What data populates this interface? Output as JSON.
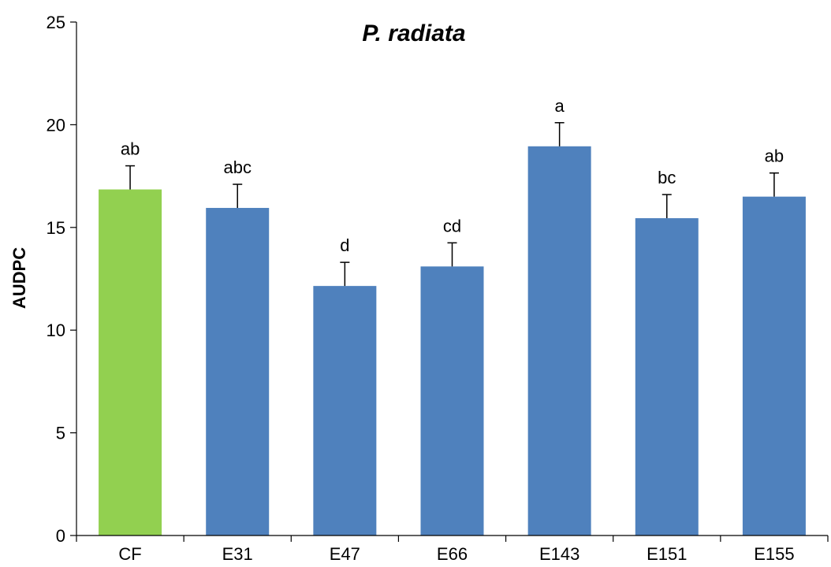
{
  "chart_data": {
    "type": "bar",
    "title": "P. radiata",
    "xlabel": "",
    "ylabel": "AUDPC",
    "ylim": [
      0,
      25
    ],
    "yticks": [
      0,
      5,
      10,
      15,
      20,
      25
    ],
    "grid": false,
    "categories": [
      "CF",
      "E31",
      "E47",
      "E66",
      "E143",
      "E151",
      "E155"
    ],
    "values": [
      16.85,
      15.95,
      12.15,
      13.1,
      18.95,
      15.45,
      16.5
    ],
    "errors": [
      1.15,
      1.15,
      1.15,
      1.15,
      1.15,
      1.15,
      1.15
    ],
    "significance_labels": [
      "ab",
      "abc",
      "d",
      "cd",
      "a",
      "bc",
      "ab"
    ],
    "bar_colors": [
      "#92d050",
      "#4f81bd",
      "#4f81bd",
      "#4f81bd",
      "#4f81bd",
      "#4f81bd",
      "#4f81bd"
    ]
  }
}
